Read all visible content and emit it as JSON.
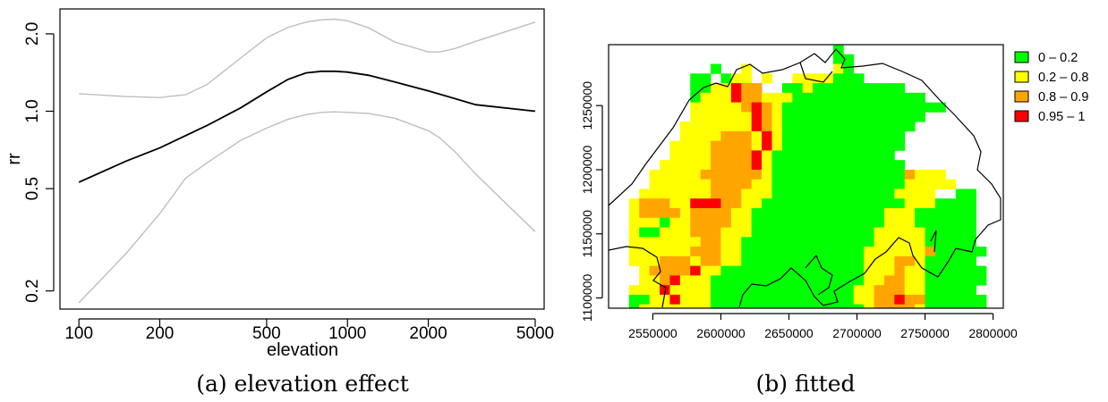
{
  "captions": [
    "(a) elevation effect",
    "(b) fitted"
  ],
  "chart_data": [
    {
      "type": "line",
      "xlabel": "elevation",
      "ylabel": "rr",
      "x_scale": "log",
      "y_scale": "log",
      "xlim": [
        85,
        5400
      ],
      "ylim": [
        0.17,
        2.5
      ],
      "x_ticks": [
        100,
        200,
        500,
        1000,
        2000,
        5000
      ],
      "x_tick_labels": [
        "100",
        "200",
        "500",
        "1000",
        "2000",
        "5000"
      ],
      "y_ticks": [
        0.2,
        0.5,
        1.0,
        2.0
      ],
      "y_tick_labels": [
        "0.2",
        "0.5",
        "1.0",
        "2.0"
      ],
      "series": [
        {
          "role": "estimate",
          "color": "#000000",
          "x": [
            100,
            150,
            200,
            300,
            400,
            500,
            600,
            700,
            800,
            900,
            1000,
            1200,
            1500,
            2000,
            3000,
            5000
          ],
          "y": [
            0.53,
            0.64,
            0.72,
            0.88,
            1.03,
            1.19,
            1.33,
            1.41,
            1.43,
            1.43,
            1.42,
            1.38,
            1.3,
            1.2,
            1.06,
            1.0
          ]
        },
        {
          "role": "upper",
          "color": "#bebebe",
          "x": [
            100,
            150,
            200,
            250,
            300,
            400,
            500,
            600,
            700,
            800,
            900,
            1000,
            1200,
            1500,
            2000,
            2200,
            2500,
            3000,
            5000
          ],
          "y": [
            1.17,
            1.14,
            1.13,
            1.16,
            1.27,
            1.61,
            1.93,
            2.12,
            2.22,
            2.27,
            2.28,
            2.25,
            2.11,
            1.86,
            1.7,
            1.7,
            1.75,
            1.87,
            2.22
          ]
        },
        {
          "role": "lower",
          "color": "#bebebe",
          "x": [
            100,
            150,
            200,
            250,
            300,
            400,
            500,
            600,
            700,
            800,
            900,
            1000,
            1200,
            1500,
            2000,
            2200,
            2500,
            3000,
            5000
          ],
          "y": [
            0.18,
            0.28,
            0.4,
            0.55,
            0.63,
            0.77,
            0.86,
            0.93,
            0.97,
            0.99,
            0.995,
            0.99,
            0.98,
            0.94,
            0.84,
            0.79,
            0.7,
            0.57,
            0.34
          ]
        }
      ]
    },
    {
      "type": "heatmap",
      "x_range": [
        2517500,
        2807500
      ],
      "y_range": [
        1092000,
        1297500
      ],
      "x_ticks": [
        2550000,
        2600000,
        2650000,
        2700000,
        2750000,
        2800000
      ],
      "x_tick_labels": [
        "2550000",
        "2600000",
        "2650000",
        "2700000",
        "2750000",
        "2800000"
      ],
      "y_ticks": [
        1100000,
        1150000,
        1200000,
        1250000
      ],
      "y_tick_labels": [
        "1100000",
        "1150000",
        "1200000",
        "1250000"
      ],
      "grid_origin": [
        2517500,
        1297500
      ],
      "cell_size_m": 7500,
      "legend": [
        {
          "label": "0 – 0.2",
          "color": "#00ff00"
        },
        {
          "label": "0.2 – 0.8",
          "color": "#ffff00"
        },
        {
          "label": "0.8 – 0.9",
          "color": "#ffa500"
        },
        {
          "label": "0.95 – 1",
          "color": "#ff0000"
        }
      ],
      "legend_placement": "right",
      "cells": [
        "......................0.............",
        "......................00............",
        "..........0..1........10............",
        "........00.011.1..1111000...........",
        "........0011322..001000000000.......",
        "........01113221110000000000000.....",
        "........1111123210000000000000000...",
        "........11111132100000000000000.....",
        ".......11111113210000000000000......",
        ".......1111222131000000000000.......",
        "......11112222131000000000000.......",
        "......1111222231000000000000........",
        ".....111112222310000000000000.......",
        "....11111222222100000000000002111...",
        "....111111222211000000000000011111..",
        "...11111112221110000000000001111..00",
        "..1222113332211000000000000001110000",
        "..1222212222110000000000000111000000",
        "..1110112222110000000000000111000000",
        "..1001112221110000000000001111100000",
        "..1111111221100000000000001111100000",
        "..11111122211000000000000111111200000",
        "..1112221221100000000000011122100000",
        "...1222231100000000000000111211000000",
        "...1123111000000000000000112211000000",
        "..1113111100000000000000112221100000",
        "..00113111000000000000001122322000000",
        "..01111111000000000000000122221000000",
        "..01111100000000000000000111121000000",
        "...1111000000000000000000112110000000",
        "......11000000000000000000111000000000",
        "......1100000000000000000011000000000",
        "........00000000000000000110000......",
        "........00000000000000001100000......",
        "........000000000000001130000........",
        "........0000000000000.1.10000........",
        "........000000000000...............",
        "..........00000000................."
      ]
    }
  ]
}
